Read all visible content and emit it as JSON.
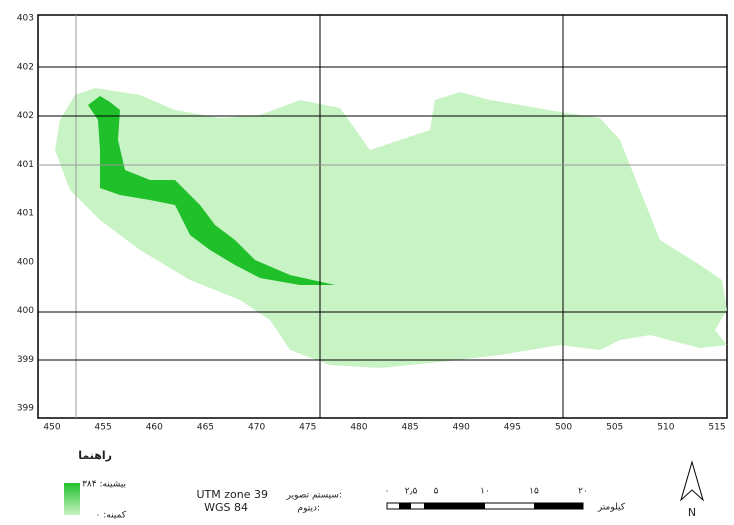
{
  "map": {
    "x_labels": [
      "450",
      "455",
      "460",
      "465",
      "470",
      "475",
      "480",
      "485",
      "490",
      "495",
      "500",
      "505",
      "510",
      "515"
    ],
    "y_labels": [
      "403",
      "402",
      "402",
      "401",
      "401",
      "400",
      "400",
      "399",
      "399"
    ],
    "legend": {
      "title": "راهنما",
      "max": "بیشینه: ۳۸۴",
      "min": "کمینه: ۰"
    },
    "projection": {
      "label": "سیستم تصویر:",
      "value": "UTM zone 39"
    },
    "datum": {
      "label": "دیتوم:",
      "value": "WGS 84"
    },
    "scale_bar": {
      "ticks": [
        "۰",
        "۲٫۵",
        "۵",
        "۱۰",
        "۱۵",
        "۲۰"
      ],
      "unit": "کیلومتر"
    },
    "north": "N"
  }
}
